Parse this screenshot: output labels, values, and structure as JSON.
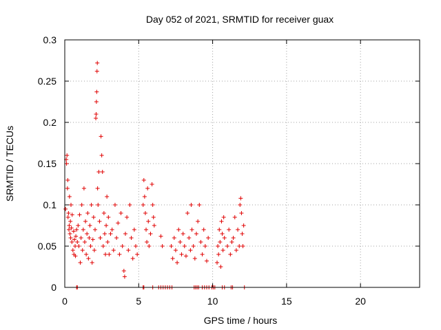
{
  "chart_data": {
    "type": "scatter",
    "title": "Day 052 of 2021, SRMTID for receiver guax",
    "xlabel": "GPS time / hours",
    "ylabel": "SRMTID / TECUs",
    "xlim": [
      0,
      24
    ],
    "ylim": [
      0,
      0.3
    ],
    "xticks": [
      0,
      5,
      10,
      15,
      20
    ],
    "xtick_labels": [
      "0",
      "5",
      "10",
      "15",
      "20"
    ],
    "yticks": [
      0,
      0.05,
      0.1,
      0.15,
      0.2,
      0.25,
      0.3
    ],
    "ytick_labels": [
      "0",
      "0.05",
      "0.1",
      "0.15",
      "0.2",
      "0.25",
      "0.3"
    ],
    "grid": true,
    "marker": "plus",
    "color": "#e00000",
    "series": [
      {
        "name": "SRMTID",
        "points": [
          [
            0.05,
            0.095
          ],
          [
            0.1,
            0.155
          ],
          [
            0.12,
            0.15
          ],
          [
            0.15,
            0.16
          ],
          [
            0.18,
            0.12
          ],
          [
            0.2,
            0.13
          ],
          [
            0.22,
            0.085
          ],
          [
            0.25,
            0.09
          ],
          [
            0.28,
            0.07
          ],
          [
            0.3,
            0.075
          ],
          [
            0.32,
            0.11
          ],
          [
            0.35,
            0.065
          ],
          [
            0.38,
            0.08
          ],
          [
            0.4,
            0.06
          ],
          [
            0.42,
            0.1
          ],
          [
            0.45,
            0.072
          ],
          [
            0.48,
            0.055
          ],
          [
            0.5,
            0.088
          ],
          [
            0.55,
            0.045
          ],
          [
            0.6,
            0.068
          ],
          [
            0.62,
            0.04
          ],
          [
            0.65,
            0.058
          ],
          [
            0.7,
            0.05
          ],
          [
            0.72,
            0.038
          ],
          [
            0.75,
            0.062
          ],
          [
            0.8,
            0.07
          ],
          [
            0.85,
            0.055
          ],
          [
            0.9,
            0.075
          ],
          [
            0.95,
            0.05
          ],
          [
            1.0,
            0.088
          ],
          [
            1.05,
            0.03
          ],
          [
            1.1,
            0.06
          ],
          [
            1.15,
            0.1
          ],
          [
            1.2,
            0.045
          ],
          [
            1.25,
            0.07
          ],
          [
            1.3,
            0.12
          ],
          [
            1.35,
            0.055
          ],
          [
            1.4,
            0.08
          ],
          [
            1.45,
            0.04
          ],
          [
            1.5,
            0.065
          ],
          [
            1.55,
            0.09
          ],
          [
            1.6,
            0.035
          ],
          [
            1.65,
            0.06
          ],
          [
            1.7,
            0.075
          ],
          [
            1.75,
            0.05
          ],
          [
            1.8,
            0.1
          ],
          [
            1.85,
            0.03
          ],
          [
            1.9,
            0.058
          ],
          [
            1.95,
            0.085
          ],
          [
            2.0,
            0.045
          ],
          [
            2.05,
            0.07
          ],
          [
            2.1,
            0.205
          ],
          [
            2.12,
            0.21
          ],
          [
            2.14,
            0.225
          ],
          [
            2.16,
            0.237
          ],
          [
            2.18,
            0.262
          ],
          [
            2.2,
            0.272
          ],
          [
            2.22,
            0.12
          ],
          [
            2.25,
            0.1
          ],
          [
            2.3,
            0.14
          ],
          [
            2.35,
            0.08
          ],
          [
            2.4,
            0.06
          ],
          [
            2.45,
            0.183
          ],
          [
            2.5,
            0.16
          ],
          [
            2.55,
            0.14
          ],
          [
            2.6,
            0.05
          ],
          [
            2.65,
            0.09
          ],
          [
            2.7,
            0.065
          ],
          [
            2.75,
            0.04
          ],
          [
            2.8,
            0.075
          ],
          [
            2.85,
            0.11
          ],
          [
            2.9,
            0.055
          ],
          [
            2.95,
            0.085
          ],
          [
            3.0,
            0.04
          ],
          [
            3.1,
            0.065
          ],
          [
            3.2,
            0.07
          ],
          [
            3.3,
            0.045
          ],
          [
            3.4,
            0.1
          ],
          [
            3.5,
            0.06
          ],
          [
            3.6,
            0.078
          ],
          [
            3.7,
            0.04
          ],
          [
            3.8,
            0.09
          ],
          [
            3.9,
            0.05
          ],
          [
            4.0,
            0.02
          ],
          [
            4.05,
            0.013
          ],
          [
            4.1,
            0.065
          ],
          [
            4.2,
            0.085
          ],
          [
            4.3,
            0.045
          ],
          [
            4.4,
            0.1
          ],
          [
            4.5,
            0.06
          ],
          [
            4.6,
            0.035
          ],
          [
            4.7,
            0.07
          ],
          [
            4.8,
            0.05
          ],
          [
            4.9,
            0.04
          ],
          [
            5.3,
            0.1
          ],
          [
            5.35,
            0.13
          ],
          [
            5.4,
            0.11
          ],
          [
            5.45,
            0.09
          ],
          [
            5.5,
            0.07
          ],
          [
            5.55,
            0.055
          ],
          [
            5.6,
            0.12
          ],
          [
            5.65,
            0.08
          ],
          [
            5.7,
            0.05
          ],
          [
            5.8,
            0.065
          ],
          [
            5.9,
            0.125
          ],
          [
            5.95,
            0.1
          ],
          [
            6.0,
            0.085
          ],
          [
            6.05,
            0.075
          ],
          [
            6.5,
            0.062
          ],
          [
            6.6,
            0.05
          ],
          [
            7.2,
            0.05
          ],
          [
            7.3,
            0.035
          ],
          [
            7.4,
            0.06
          ],
          [
            7.5,
            0.045
          ],
          [
            7.6,
            0.03
          ],
          [
            7.7,
            0.07
          ],
          [
            7.8,
            0.055
          ],
          [
            7.9,
            0.04
          ],
          [
            8.0,
            0.065
          ],
          [
            8.1,
            0.05
          ],
          [
            8.2,
            0.038
          ],
          [
            8.3,
            0.09
          ],
          [
            8.4,
            0.06
          ],
          [
            8.5,
            0.045
          ],
          [
            8.55,
            0.1
          ],
          [
            8.6,
            0.07
          ],
          [
            8.7,
            0.05
          ],
          [
            8.8,
            0.035
          ],
          [
            8.9,
            0.065
          ],
          [
            9.0,
            0.08
          ],
          [
            9.1,
            0.1
          ],
          [
            9.2,
            0.055
          ],
          [
            9.3,
            0.04
          ],
          [
            9.4,
            0.07
          ],
          [
            9.5,
            0.05
          ],
          [
            9.6,
            0.032
          ],
          [
            9.7,
            0.06
          ],
          [
            10.3,
            0.03
          ],
          [
            10.35,
            0.05
          ],
          [
            10.4,
            0.04
          ],
          [
            10.45,
            0.07
          ],
          [
            10.5,
            0.055
          ],
          [
            10.55,
            0.025
          ],
          [
            10.6,
            0.08
          ],
          [
            10.65,
            0.065
          ],
          [
            10.7,
            0.045
          ],
          [
            10.75,
            0.085
          ],
          [
            10.8,
            0.06
          ],
          [
            11.0,
            0.05
          ],
          [
            11.1,
            0.07
          ],
          [
            11.2,
            0.04
          ],
          [
            11.3,
            0.055
          ],
          [
            11.4,
            0.06
          ],
          [
            11.5,
            0.085
          ],
          [
            11.6,
            0.045
          ],
          [
            11.7,
            0.07
          ],
          [
            11.8,
            0.05
          ],
          [
            11.85,
            0.1
          ],
          [
            11.9,
            0.108
          ],
          [
            11.95,
            0.09
          ],
          [
            12.0,
            0.065
          ],
          [
            12.05,
            0.05
          ],
          [
            12.1,
            0.075
          ]
        ]
      }
    ],
    "zero_points_x": [
      0.8,
      0.85,
      5.3,
      5.35,
      5.95,
      6.35,
      6.5,
      6.65,
      6.8,
      6.95,
      7.1,
      7.25,
      8.75,
      8.85,
      8.95,
      9.05,
      9.3,
      9.45,
      9.6,
      9.75,
      9.95,
      10.05,
      10.15,
      10.65,
      10.8,
      11.25,
      11.35,
      12.15
    ]
  }
}
